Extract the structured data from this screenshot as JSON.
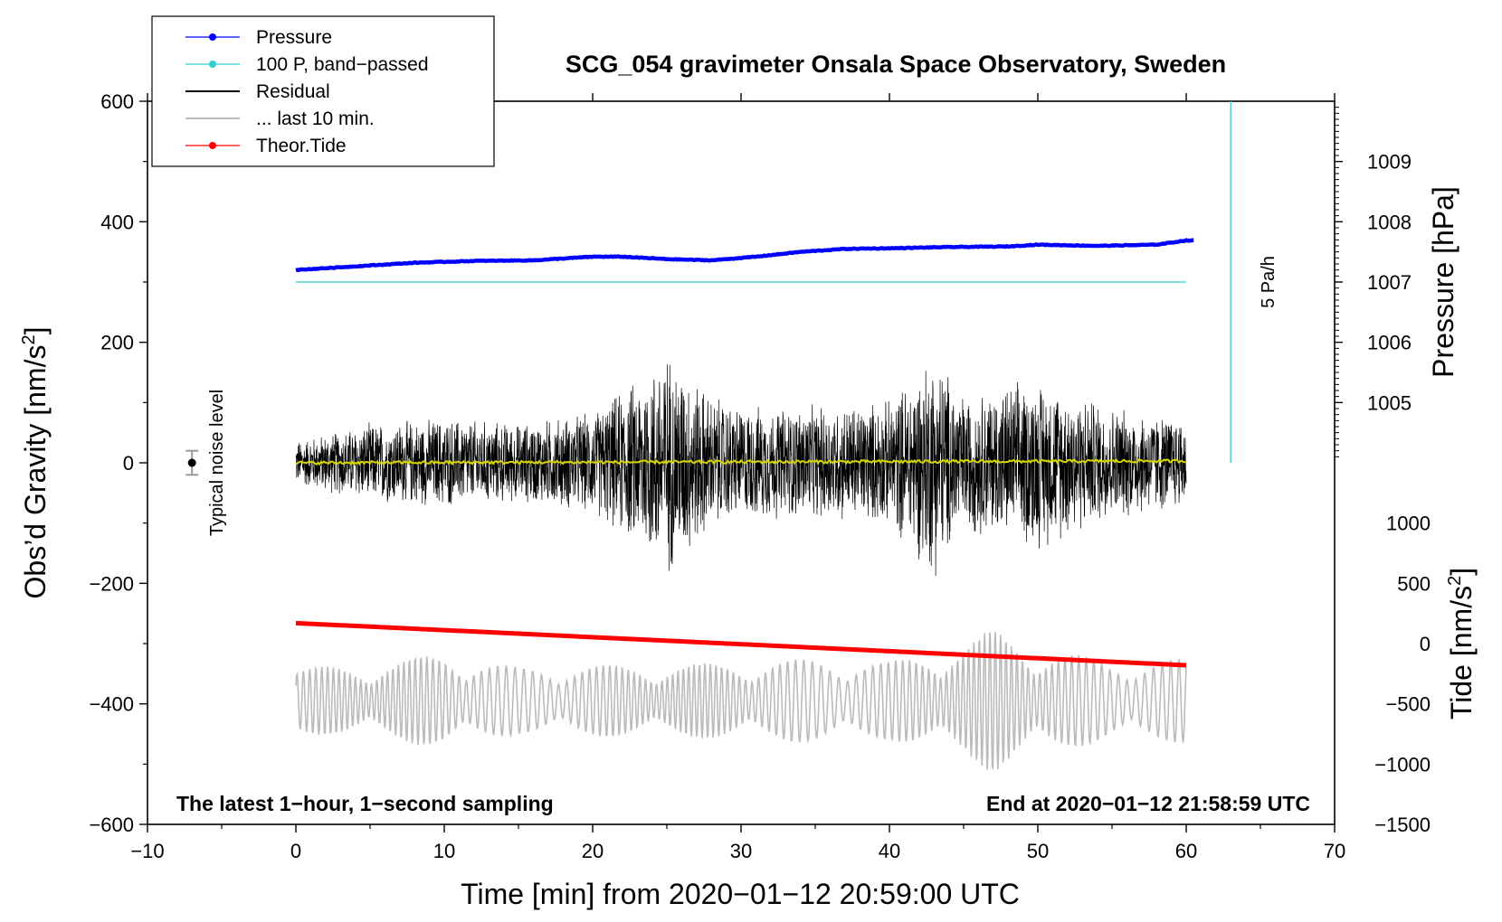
{
  "chart_data": {
    "type": "line",
    "title": "SCG_054 gravimeter Onsala Space Observatory, Sweden",
    "xlabel": "Time [min] from 2020−01−12 20:59:00 UTC",
    "xlim": [
      -10,
      70
    ],
    "x_ticks": [
      -10,
      0,
      10,
      20,
      30,
      40,
      50,
      60,
      70
    ],
    "x_tick_labels": [
      "−10",
      "0",
      "10",
      "20",
      "30",
      "40",
      "50",
      "60",
      "70"
    ],
    "left_axis": {
      "label_prefix": "Obs’d Gravity [nm/s",
      "label_sup": "2",
      "label_suffix": "]",
      "ylim": [
        -600,
        600
      ],
      "ticks": [
        600,
        400,
        200,
        0,
        -200,
        -400,
        -600
      ],
      "tick_labels": [
        "600",
        "400",
        "200",
        "0",
        "−200",
        "−400",
        "−600"
      ]
    },
    "pressure_axis": {
      "label": "Pressure [hPa]",
      "ticks": [
        1009,
        1008,
        1007,
        1006,
        1005
      ],
      "tick_labels": [
        "1009",
        "1008",
        "1007",
        "1006",
        "1005"
      ],
      "gravity_equivalent": {
        "1009": 500,
        "1005": 100
      }
    },
    "tide_axis": {
      "label_prefix": "Tide [nm/s",
      "label_sup": "2",
      "label_suffix": "]",
      "ticks": [
        1000,
        500,
        0,
        -500,
        -1000,
        -1500
      ],
      "tick_labels": [
        "1000",
        "500",
        "0",
        "−500",
        "−1000",
        "−1500"
      ],
      "gravity_equivalent": {
        "1000": -100,
        "-1500": -600
      }
    },
    "legend": {
      "placement": "top-left",
      "entries": [
        {
          "label": "Pressure",
          "color": "#0000ff",
          "marker": true
        },
        {
          "label": "100 P, band−passed",
          "color": "#30d0d0",
          "marker": true
        },
        {
          "label": "Residual",
          "color": "#000000",
          "marker": false
        },
        {
          "label": "... last 10 min.",
          "color": "#bbbbbb",
          "marker": false
        },
        {
          "label": "Theor.Tide",
          "color": "#ff0000",
          "marker": true
        }
      ]
    },
    "series": [
      {
        "name": "Pressure",
        "axis": "pressure [hPa]",
        "color": "#0000ff",
        "x": [
          0,
          4,
          8,
          12,
          16,
          20,
          22,
          25,
          28,
          31,
          34,
          37,
          40,
          44,
          48,
          50,
          54,
          58,
          60
        ],
        "values": [
          1007.2,
          1007.26,
          1007.32,
          1007.35,
          1007.36,
          1007.42,
          1007.42,
          1007.38,
          1007.36,
          1007.42,
          1007.5,
          1007.55,
          1007.56,
          1007.58,
          1007.59,
          1007.62,
          1007.6,
          1007.62,
          1007.69
        ]
      },
      {
        "name": "100 P, band−passed",
        "axis": "pressure [hPa]",
        "color": "#30d0d0",
        "x": [
          0,
          60
        ],
        "values": [
          1007.0,
          1007.0
        ]
      },
      {
        "name": "Residual",
        "axis": "gravity [nm/s2]",
        "color": "#000000",
        "x": [
          0,
          5,
          10,
          15,
          20,
          23,
          25,
          28,
          30,
          35,
          40,
          43,
          45,
          50,
          55,
          60
        ],
        "envelope": [
          40,
          70,
          80,
          70,
          90,
          150,
          200,
          120,
          100,
          100,
          110,
          200,
          120,
          150,
          100,
          80
        ]
      },
      {
        "name": "Residual smoothed",
        "axis": "gravity [nm/s2]",
        "color": "#d6d600",
        "x": [
          0,
          60
        ],
        "values": [
          0,
          3
        ]
      },
      {
        "name": "... last 10 min.",
        "axis": "gravity [nm/s2]",
        "color": "#bbbbbb",
        "x": [
          0,
          5,
          10,
          15,
          20,
          25,
          30,
          35,
          40,
          45,
          47,
          50,
          55,
          60
        ],
        "center": [
          -395,
          -395,
          -395,
          -395,
          -395,
          -395,
          -395,
          -395,
          -395,
          -395,
          -395,
          -395,
          -395,
          -395
        ],
        "envelope": [
          55,
          60,
          80,
          55,
          60,
          60,
          65,
          70,
          65,
          95,
          120,
          90,
          65,
          70
        ]
      },
      {
        "name": "Theor.Tide",
        "axis": "tide [nm/s2]",
        "color": "#ff0000",
        "x": [
          0,
          60
        ],
        "values": [
          170,
          -180
        ]
      }
    ],
    "noise_marker": {
      "x": -7,
      "value": 0,
      "error": 20,
      "label": "Typical noise level"
    },
    "pressure_rate_bar": {
      "x": 63,
      "top": 600,
      "bottom": 0,
      "label": "5 Pa/h"
    },
    "annotations": {
      "bottom_left": "The latest 1−hour, 1−second sampling",
      "bottom_right": "End at 2020−01−12 21:58:59 UTC"
    }
  }
}
